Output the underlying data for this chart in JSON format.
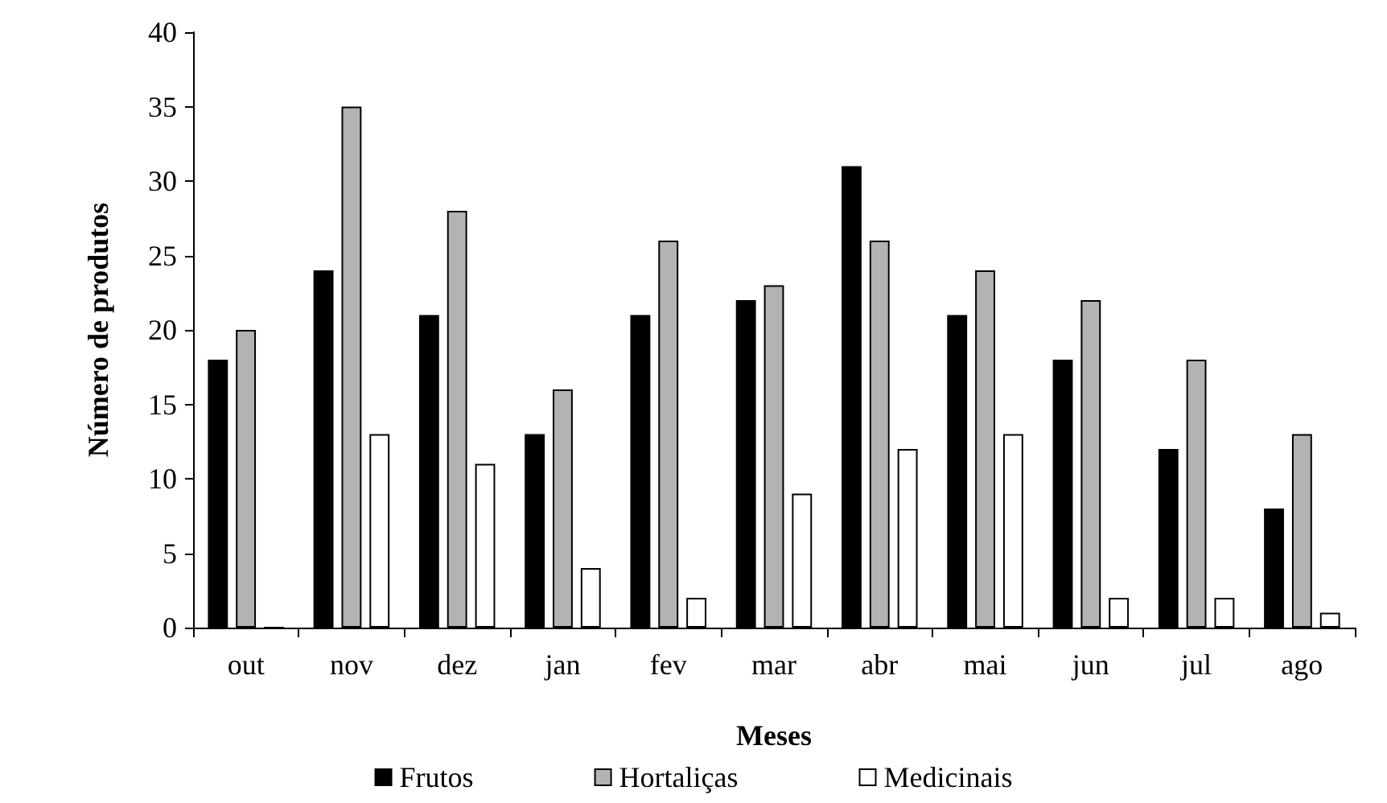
{
  "chart_data": {
    "type": "bar",
    "xlabel": "Meses",
    "ylabel": "Número de produtos",
    "categories": [
      "out",
      "nov",
      "dez",
      "jan",
      "fev",
      "mar",
      "abr",
      "mai",
      "jun",
      "jul",
      "ago"
    ],
    "series": [
      {
        "name": "Frutos",
        "color": "#000000",
        "values": [
          18,
          24,
          21,
          13,
          21,
          22,
          31,
          21,
          18,
          12,
          8
        ]
      },
      {
        "name": "Hortaliças",
        "color": "#b3b3b3",
        "values": [
          20,
          35,
          28,
          16,
          26,
          23,
          26,
          24,
          22,
          18,
          13
        ]
      },
      {
        "name": "Medicinais",
        "color": "#ffffff",
        "values": [
          0,
          13,
          11,
          4,
          2,
          9,
          12,
          13,
          2,
          2,
          1
        ]
      }
    ],
    "ylim": [
      0,
      40
    ],
    "yticks": [
      0,
      5,
      10,
      15,
      20,
      25,
      30,
      35,
      40
    ],
    "grid": false,
    "legend": "bottom"
  }
}
